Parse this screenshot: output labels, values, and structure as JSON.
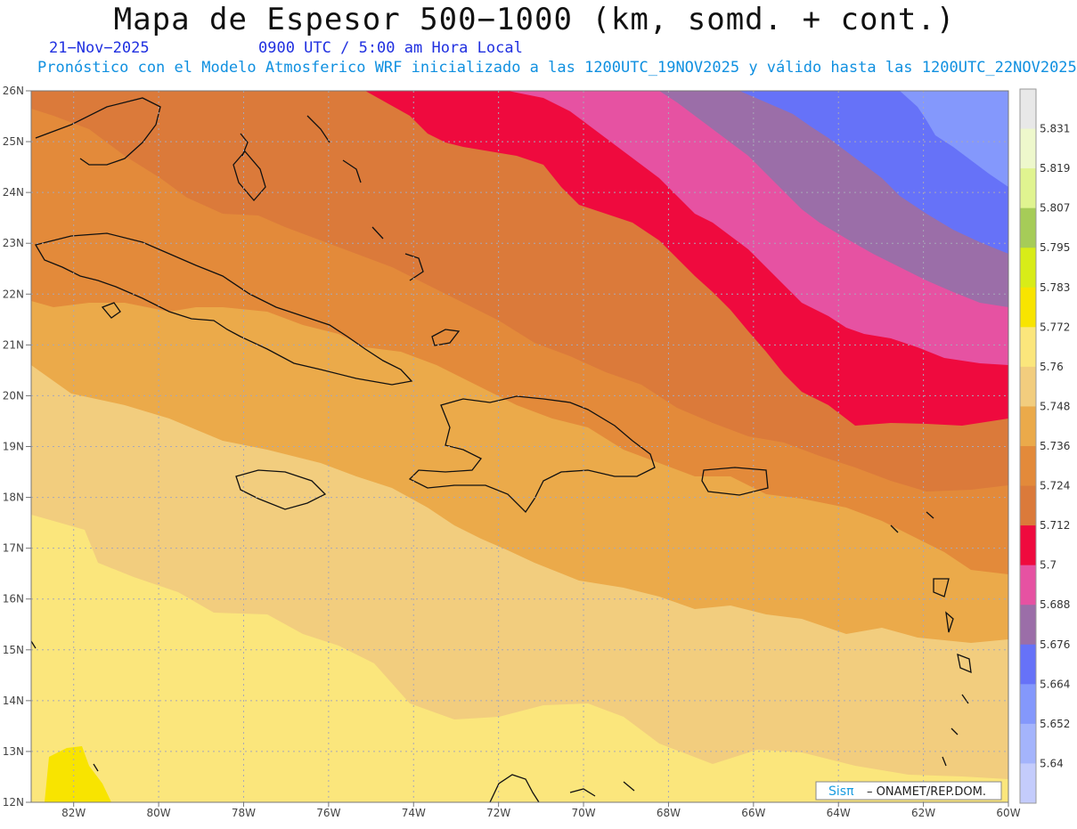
{
  "header": {
    "title": "Mapa de Espesor 500−1000 (km, somd. + cont.)",
    "date": "21−Nov−2025",
    "time": "0900 UTC / 5:00 am Hora Local",
    "init": "Pronóstico con el Modelo Atmosferico WRF inicializado a las 1200UTC_19NOV2025 y válido hasta las  1200UTC_22NOV2025"
  },
  "map": {
    "lat_labels": [
      "26N",
      "25N",
      "24N",
      "23N",
      "22N",
      "21N",
      "20N",
      "19N",
      "18N",
      "17N",
      "16N",
      "15N",
      "14N",
      "13N",
      "12N"
    ],
    "lon_labels": [
      "82W",
      "80W",
      "78W",
      "76W",
      "74W",
      "72W",
      "70W",
      "68W",
      "66W",
      "64W",
      "62W",
      "60W"
    ],
    "credit_brand": "Sisπ",
    "credit_text": "– ONAMET/REP.DOM.",
    "colors": {
      "band_5748": "#f2cd7e",
      "band_5760": "#fbe67c",
      "band_5772": "#f8e400",
      "band_5736": "#ebaa4a",
      "band_5724": "#e38a3a",
      "band_5712": "#db7a3a",
      "band_5700": "#ef0a3e",
      "band_5688": "#e652a2",
      "band_5676": "#9b6ea8",
      "band_5664": "#6672f8",
      "band_5652": "#8498fc",
      "coast": "#111111",
      "grid": "#a8a8b8"
    }
  },
  "colorbar": {
    "labels": [
      "5.831",
      "5.819",
      "5.807",
      "5.795",
      "5.783",
      "5.772",
      "5.76",
      "5.748",
      "5.736",
      "5.724",
      "5.712",
      "5.7",
      "5.688",
      "5.676",
      "5.664",
      "5.652",
      "5.64"
    ],
    "colors": [
      "#e8e8e8",
      "#eef8cc",
      "#e0f490",
      "#a6cc58",
      "#d8ec18",
      "#f8e400",
      "#fbe67c",
      "#f2cd7e",
      "#ebaa4a",
      "#e38a3a",
      "#db7a3a",
      "#ef0a3e",
      "#e652a2",
      "#9b6ea8",
      "#6672f8",
      "#8498fc",
      "#a4b4fc",
      "#c4ccfc"
    ]
  }
}
